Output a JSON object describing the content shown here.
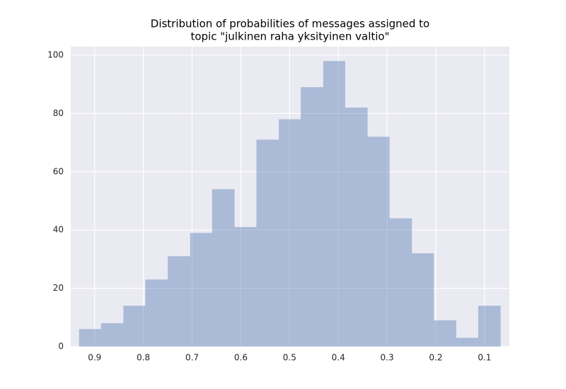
{
  "chart_data": {
    "type": "histogram",
    "title": [
      "Distribution of probabilities of messages assigned to",
      "topic \"julkinen raha yksityinen valtio\""
    ],
    "bins": [
      0.067,
      0.113,
      0.158,
      0.204,
      0.249,
      0.295,
      0.34,
      0.386,
      0.431,
      0.477,
      0.522,
      0.568,
      0.613,
      0.659,
      0.704,
      0.75,
      0.796,
      0.841,
      0.887,
      0.932
    ],
    "counts": [
      14,
      3,
      9,
      32,
      44,
      72,
      82,
      98,
      89,
      78,
      71,
      41,
      54,
      39,
      31,
      23,
      14,
      8,
      6
    ],
    "color": "#4c72b0",
    "opacity": 0.4,
    "xlim": [
      0.949,
      0.049
    ],
    "xticks": [
      0.9,
      0.8,
      0.7,
      0.6,
      0.5,
      0.4,
      0.3,
      0.2,
      0.1
    ],
    "ylim": [
      0,
      102.9
    ],
    "yticks": [
      0,
      20,
      40,
      60,
      80,
      100
    ],
    "grid": true
  }
}
